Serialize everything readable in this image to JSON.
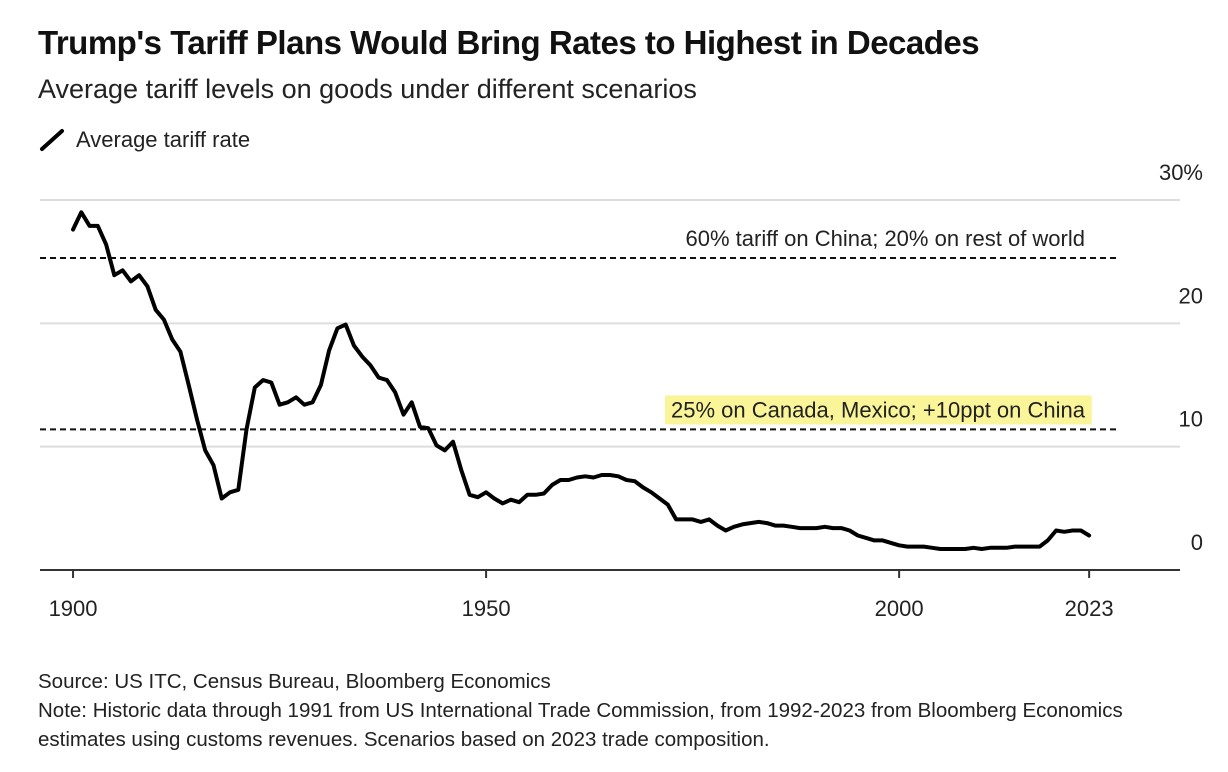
{
  "chart_data": {
    "type": "line",
    "title": "Trump's Tariff Plans Would Bring Rates to Highest in Decades",
    "subtitle": "Average tariff levels on goods under different scenarios",
    "source": "Source: US ITC, Census Bureau, Bloomberg Economics",
    "note": "Note: Historic data through 1991 from US International Trade Commission, from 1992-2023 from Bloomberg Economics estimates using customs revenues. Scenarios based on 2023 trade composition.",
    "x": [
      1900,
      1901,
      1902,
      1903,
      1904,
      1905,
      1906,
      1907,
      1908,
      1909,
      1910,
      1911,
      1912,
      1913,
      1914,
      1915,
      1916,
      1917,
      1918,
      1919,
      1920,
      1921,
      1922,
      1923,
      1924,
      1925,
      1926,
      1927,
      1928,
      1929,
      1930,
      1931,
      1932,
      1933,
      1934,
      1935,
      1936,
      1937,
      1938,
      1939,
      1940,
      1941,
      1942,
      1943,
      1944,
      1945,
      1946,
      1947,
      1948,
      1949,
      1950,
      1951,
      1952,
      1953,
      1954,
      1955,
      1956,
      1957,
      1958,
      1959,
      1960,
      1961,
      1962,
      1963,
      1964,
      1965,
      1966,
      1967,
      1968,
      1969,
      1970,
      1971,
      1972,
      1973,
      1974,
      1975,
      1976,
      1977,
      1978,
      1979,
      1980,
      1981,
      1982,
      1983,
      1984,
      1985,
      1986,
      1987,
      1988,
      1989,
      1990,
      1991,
      1992,
      1993,
      1994,
      1995,
      1996,
      1997,
      1998,
      1999,
      2000,
      2001,
      2002,
      2003,
      2004,
      2005,
      2006,
      2007,
      2008,
      2009,
      2010,
      2011,
      2012,
      2013,
      2014,
      2015,
      2016,
      2017,
      2018,
      2019,
      2020,
      2021,
      2022,
      2023
    ],
    "series": [
      {
        "name": "Average tariff rate",
        "color": "#000000",
        "values": [
          27.6,
          29.0,
          27.9,
          27.9,
          26.4,
          23.9,
          24.3,
          23.4,
          23.9,
          23.0,
          21.1,
          20.3,
          18.7,
          17.7,
          15.0,
          12.2,
          9.7,
          8.5,
          5.8,
          6.3,
          6.5,
          11.4,
          14.8,
          15.4,
          15.2,
          13.4,
          13.6,
          14.0,
          13.4,
          13.6,
          15.0,
          17.8,
          19.6,
          19.9,
          18.2,
          17.3,
          16.6,
          15.6,
          15.4,
          14.4,
          12.6,
          13.6,
          11.6,
          11.5,
          10.1,
          9.7,
          10.4,
          8.1,
          6.1,
          5.9,
          6.3,
          5.8,
          5.4,
          5.7,
          5.5,
          6.1,
          6.1,
          6.2,
          6.9,
          7.3,
          7.3,
          7.5,
          7.6,
          7.5,
          7.7,
          7.7,
          7.6,
          7.3,
          7.2,
          6.7,
          6.3,
          5.8,
          5.3,
          4.1,
          4.1,
          4.1,
          3.9,
          4.1,
          3.6,
          3.2,
          3.5,
          3.7,
          3.8,
          3.9,
          3.8,
          3.6,
          3.6,
          3.5,
          3.4,
          3.4,
          3.4,
          3.5,
          3.4,
          3.4,
          3.2,
          2.8,
          2.6,
          2.4,
          2.4,
          2.2,
          2.0,
          1.9,
          1.9,
          1.9,
          1.8,
          1.7,
          1.7,
          1.7,
          1.7,
          1.8,
          1.7,
          1.8,
          1.8,
          1.8,
          1.9,
          1.9,
          1.9,
          1.9,
          2.4,
          3.2,
          3.1,
          3.2,
          3.2,
          2.8
        ]
      }
    ],
    "annotations": [
      {
        "text": "60% tariff on China; 20% on rest of world",
        "value": 25.3
      },
      {
        "text": "25% on Canada, Mexico; +10ppt on China",
        "value": 11.4,
        "highlight": "#fbf59a"
      }
    ],
    "xlim": [
      1896,
      2034
    ],
    "xticks": [
      1900,
      1950,
      2000,
      2023
    ],
    "ylim": [
      0,
      30
    ],
    "yticks": [
      0,
      10,
      20,
      {
        "value": 30,
        "label": "30%"
      }
    ],
    "grid": true
  }
}
